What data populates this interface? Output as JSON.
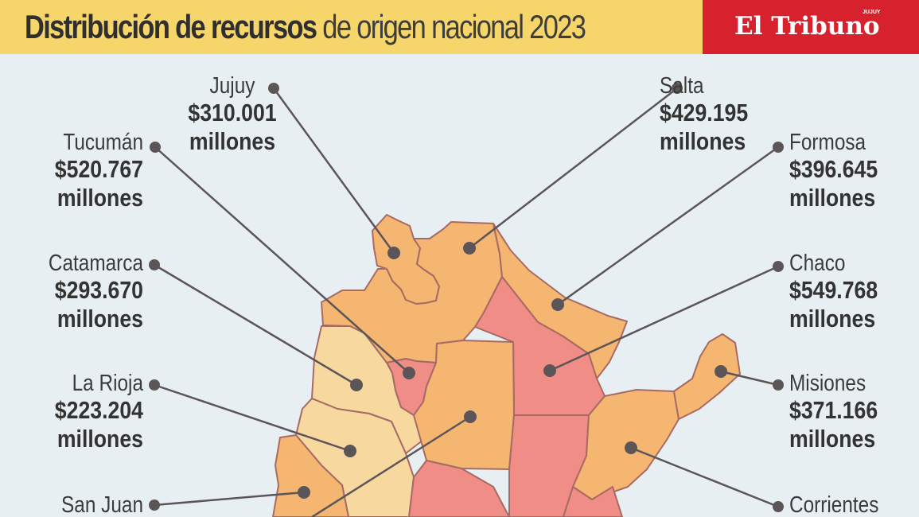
{
  "header": {
    "title_bold": "Distribución de recursos",
    "title_light": " de origen nacional 2023",
    "brand": "El Tribuno",
    "brand_small": "JUJUY"
  },
  "colors": {
    "background": "#e8eff3",
    "header": "#f6d56b",
    "brand": "#d7222e",
    "province_orange": "#f3b56d",
    "province_red": "#ef8d86",
    "province_light": "#f7d9a0",
    "line": "#5c5558"
  },
  "provinces": [
    {
      "name": "Jujuy",
      "amount": "$310.001",
      "unit": "millones"
    },
    {
      "name": "Tucumán",
      "amount": "$520.767",
      "unit": "millones"
    },
    {
      "name": "Catamarca",
      "amount": "$293.670",
      "unit": "millones"
    },
    {
      "name": "La Rioja",
      "amount": "$223.204",
      "unit": "millones"
    },
    {
      "name": "San Juan",
      "amount": "",
      "unit": ""
    },
    {
      "name": "Salta",
      "amount": "$429.195",
      "unit": "millones"
    },
    {
      "name": "Formosa",
      "amount": "$396.645",
      "unit": "millones"
    },
    {
      "name": "Chaco",
      "amount": "$549.768",
      "unit": "millones"
    },
    {
      "name": "Misiones",
      "amount": "$371.166",
      "unit": "millones"
    },
    {
      "name": "Corrientes",
      "amount": "",
      "unit": ""
    }
  ]
}
